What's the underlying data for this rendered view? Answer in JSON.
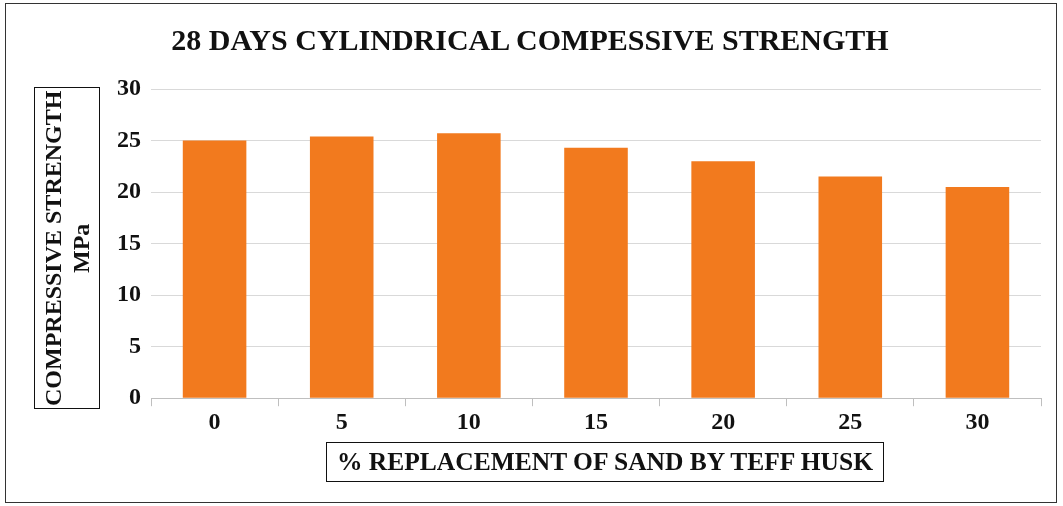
{
  "chart_data": {
    "type": "bar",
    "title": "28 DAYS CYLINDRICAL COMPESSIVE STRENGTH",
    "xlabel": "% REPLACEMENT OF SAND BY TEFF HUSK",
    "ylabel": "COMPRESSIVE STRENGTH MPa",
    "categories": [
      "0",
      "5",
      "10",
      "15",
      "20",
      "25",
      "30"
    ],
    "values": [
      25.0,
      25.4,
      25.7,
      24.3,
      23.0,
      21.5,
      20.5
    ],
    "color": "#f27a1e",
    "ylim": [
      0,
      30
    ],
    "yticks": [
      0,
      5,
      10,
      15,
      20,
      25,
      30
    ],
    "grid": "y"
  }
}
